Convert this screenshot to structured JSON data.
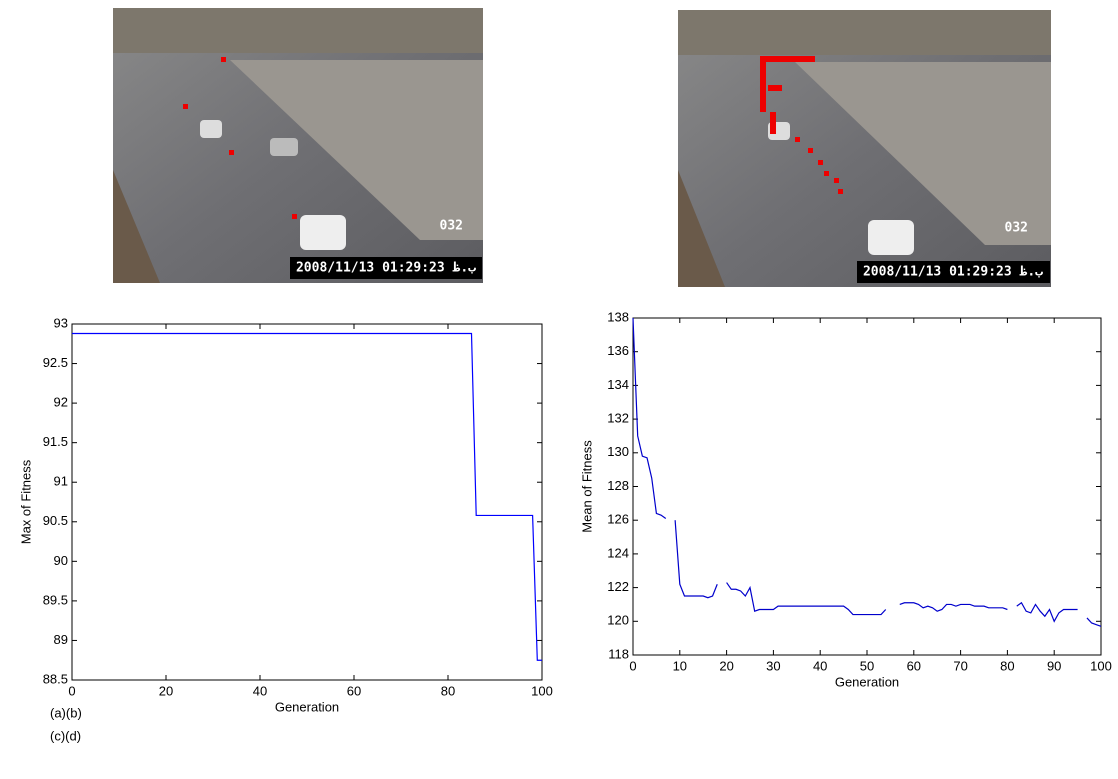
{
  "images": [
    {
      "timestamp": "2008/11/13 01:29:23 ب.ظ",
      "counter": "032"
    },
    {
      "timestamp": "2008/11/13 01:29:23 ب.ظ",
      "counter": "032"
    }
  ],
  "captions": [
    "(a)(b)",
    "(c)(d)"
  ],
  "chart_data": [
    {
      "type": "line",
      "xlabel": "Generation",
      "ylabel": "Max of Fitness",
      "color": "#0000ff",
      "x": [
        0,
        85,
        86,
        98,
        99,
        100
      ],
      "values": [
        92.88,
        92.88,
        90.58,
        90.58,
        88.75,
        88.75
      ],
      "xlim": [
        0,
        100
      ],
      "xticks": [
        0,
        20,
        40,
        60,
        80,
        100
      ],
      "ylim": [
        88.5,
        93
      ],
      "yticks": [
        88.5,
        89,
        89.5,
        90,
        90.5,
        91,
        91.5,
        92,
        92.5,
        93
      ]
    },
    {
      "type": "line",
      "xlabel": "Generation",
      "ylabel": "Mean of Fitness",
      "color": "#0000cc",
      "x": [
        0,
        1,
        2,
        3,
        4,
        5,
        6,
        7,
        8,
        9,
        10,
        11,
        12,
        13,
        14,
        15,
        16,
        17,
        18,
        19,
        20,
        21,
        22,
        23,
        24,
        25,
        26,
        27,
        28,
        29,
        30,
        31,
        32,
        33,
        34,
        35,
        36,
        37,
        38,
        39,
        40,
        41,
        42,
        43,
        44,
        45,
        46,
        47,
        48,
        49,
        50,
        51,
        52,
        53,
        54,
        55,
        56,
        57,
        58,
        59,
        60,
        61,
        62,
        63,
        64,
        65,
        66,
        67,
        68,
        69,
        70,
        71,
        72,
        73,
        74,
        75,
        76,
        77,
        78,
        79,
        80,
        81,
        82,
        83,
        84,
        85,
        86,
        87,
        88,
        89,
        90,
        91,
        92,
        93,
        94,
        95,
        96,
        97,
        98,
        99,
        100
      ],
      "values": [
        138,
        131,
        129.8,
        129.7,
        128.5,
        126.4,
        126.3,
        126.1,
        null,
        126,
        122.2,
        121.5,
        121.5,
        121.5,
        121.5,
        121.5,
        121.4,
        121.5,
        122.2,
        null,
        122.3,
        121.9,
        121.9,
        121.8,
        121.5,
        122,
        120.6,
        120.7,
        120.7,
        120.7,
        120.7,
        120.9,
        120.9,
        120.9,
        120.9,
        120.9,
        120.9,
        120.9,
        120.9,
        120.9,
        120.9,
        120.9,
        120.9,
        120.9,
        120.9,
        120.9,
        120.7,
        120.4,
        120.4,
        120.4,
        120.4,
        120.4,
        120.4,
        120.4,
        120.7,
        null,
        null,
        121,
        121.1,
        121.1,
        121.1,
        121,
        120.8,
        120.9,
        120.8,
        120.6,
        120.7,
        121,
        121,
        120.9,
        121,
        121,
        121,
        120.9,
        120.9,
        120.9,
        120.8,
        120.8,
        120.8,
        120.8,
        120.7,
        null,
        120.9,
        121.1,
        120.6,
        120.5,
        121,
        120.6,
        120.3,
        120.7,
        120,
        120.5,
        120.7,
        120.7,
        120.7,
        120.7,
        null,
        120.2,
        119.9,
        119.8,
        119.7
      ],
      "xlim": [
        0,
        100
      ],
      "xticks": [
        0,
        10,
        20,
        30,
        40,
        50,
        60,
        70,
        80,
        90,
        100
      ],
      "ylim": [
        118,
        138
      ],
      "yticks": [
        118,
        120,
        122,
        124,
        126,
        128,
        130,
        132,
        134,
        136,
        138
      ]
    }
  ]
}
